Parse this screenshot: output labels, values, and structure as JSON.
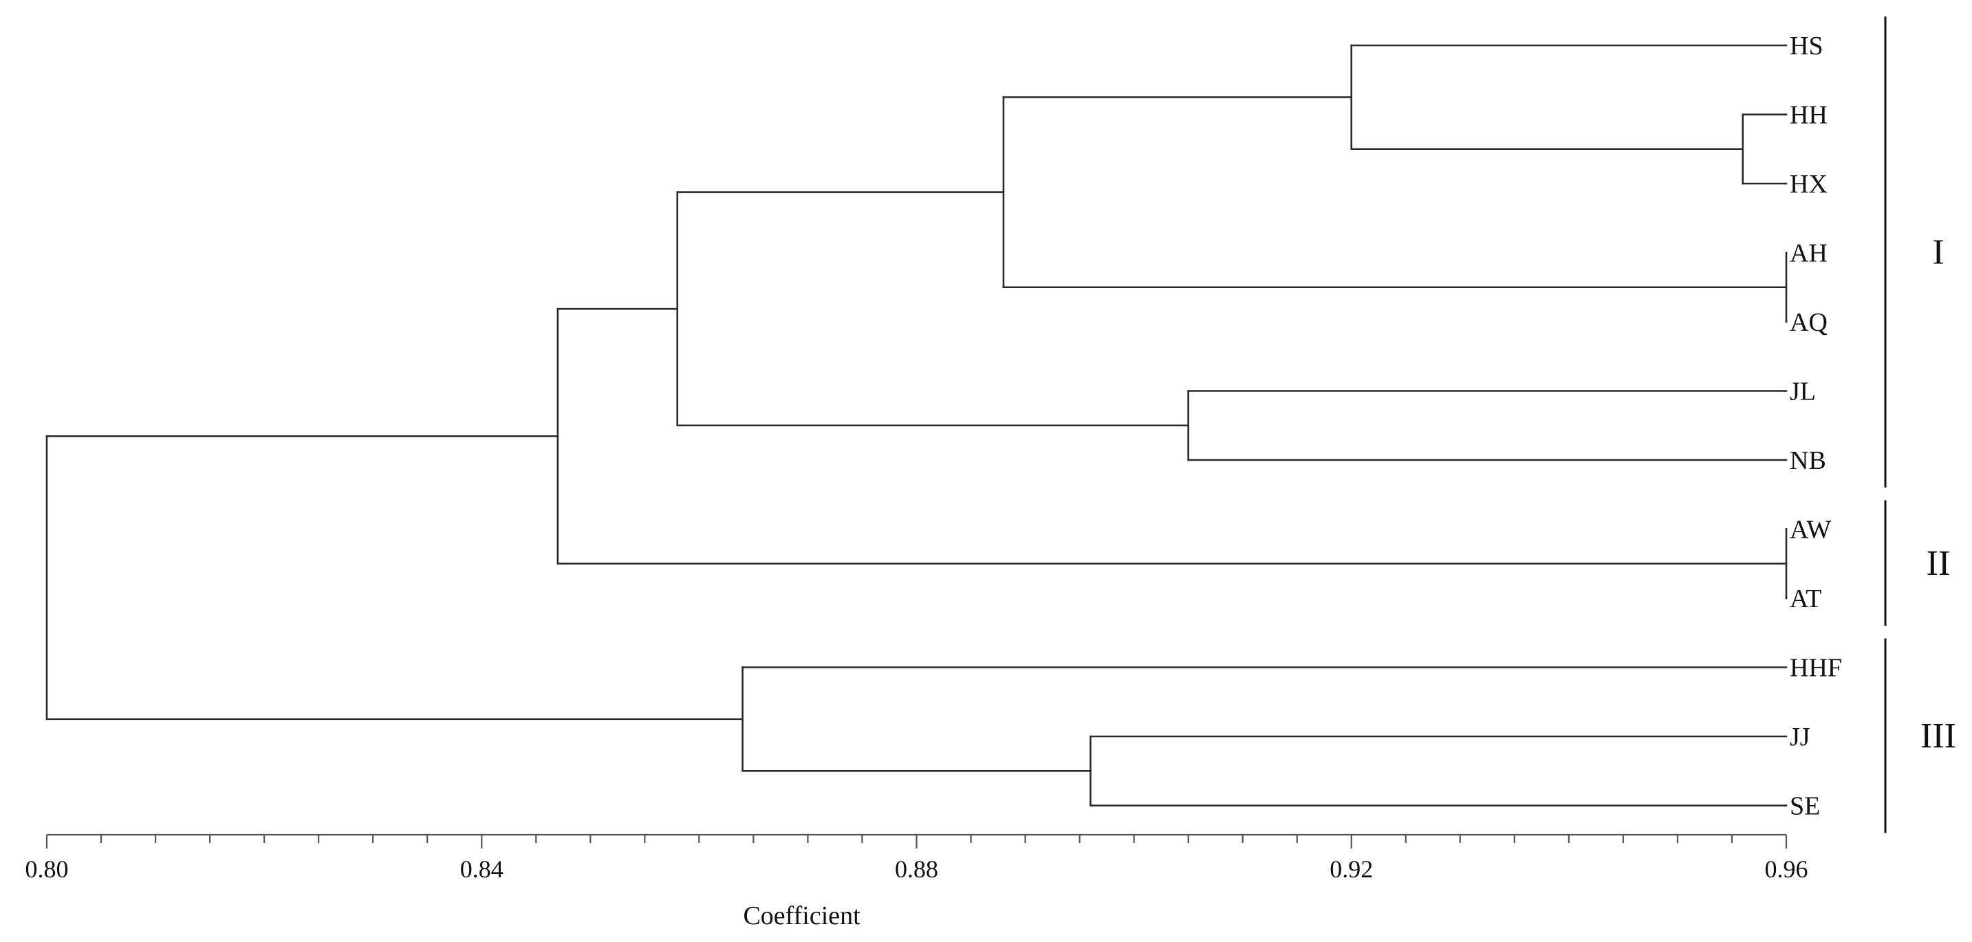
{
  "chart_data": {
    "type": "dendrogram",
    "xlabel": "Coefficient",
    "xlim": [
      0.8,
      0.96
    ],
    "major_ticks": [
      "0.80",
      "0.84",
      "0.88",
      "0.92",
      "0.96"
    ],
    "leaves": [
      "HS",
      "HH",
      "HX",
      "AH",
      "AQ",
      "JL",
      "NB",
      "AW",
      "AT",
      "HHF",
      "JJ",
      "SE"
    ],
    "merges": [
      {
        "id": "n_hh_hx",
        "children": [
          "HH",
          "HX"
        ],
        "coefficient": 0.956
      },
      {
        "id": "n_hs",
        "children": [
          "HS",
          "n_hh_hx"
        ],
        "coefficient": 0.92
      },
      {
        "id": "n_ah_aq",
        "children": [
          "AH",
          "AQ"
        ],
        "coefficient": 0.96
      },
      {
        "id": "n_h_a",
        "children": [
          "n_hs",
          "n_ah_aq"
        ],
        "coefficient": 0.888
      },
      {
        "id": "n_jl_nb",
        "children": [
          "JL",
          "NB"
        ],
        "coefficient": 0.905
      },
      {
        "id": "n_g1",
        "children": [
          "n_h_a",
          "n_jl_nb"
        ],
        "coefficient": 0.858
      },
      {
        "id": "n_aw_at",
        "children": [
          "AW",
          "AT"
        ],
        "coefficient": 0.96
      },
      {
        "id": "n_g12",
        "children": [
          "n_g1",
          "n_aw_at"
        ],
        "coefficient": 0.847
      },
      {
        "id": "n_jj_se",
        "children": [
          "JJ",
          "SE"
        ],
        "coefficient": 0.896
      },
      {
        "id": "n_g3",
        "children": [
          "HHF",
          "n_jj_se"
        ],
        "coefficient": 0.864
      },
      {
        "id": "root",
        "children": [
          "n_g12",
          "n_g3"
        ],
        "coefficient": 0.8
      }
    ],
    "groups": [
      {
        "label": "I",
        "first_leaf": "HS",
        "last_leaf": "NB"
      },
      {
        "label": "II",
        "first_leaf": "AW",
        "last_leaf": "AT"
      },
      {
        "label": "III",
        "first_leaf": "HHF",
        "last_leaf": "SE"
      }
    ]
  }
}
